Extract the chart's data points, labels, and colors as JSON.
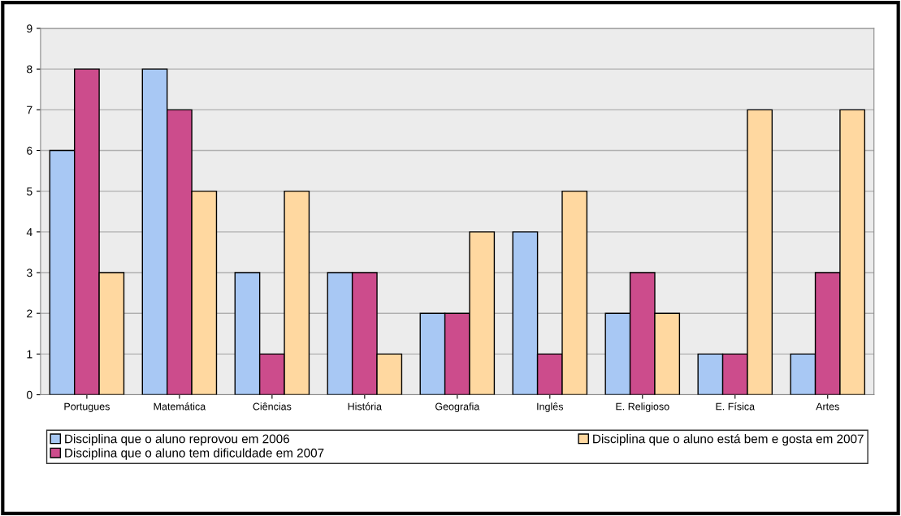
{
  "chart_data": {
    "type": "bar",
    "categories": [
      "Portugues",
      "Matemática",
      "Ciências",
      "História",
      "Geografia",
      "Inglês",
      "E. Religioso",
      "E. Física",
      "Artes"
    ],
    "series": [
      {
        "name": "Disciplina que o aluno reprovou em 2006",
        "color": "#a8c8f4",
        "values": [
          6,
          8,
          3,
          3,
          2,
          4,
          2,
          1,
          1
        ]
      },
      {
        "name": "Disciplina que o aluno tem dificuldade em 2007",
        "color": "#cc4c8c",
        "values": [
          8,
          7,
          1,
          3,
          2,
          1,
          3,
          1,
          3
        ]
      },
      {
        "name": "Disciplina que o aluno está bem e gosta em 2007",
        "color": "#ffd8a0",
        "values": [
          3,
          5,
          5,
          1,
          4,
          5,
          2,
          7,
          7
        ]
      }
    ],
    "ylim": [
      0,
      9
    ],
    "yticks": [
      0,
      1,
      2,
      3,
      4,
      5,
      6,
      7,
      8,
      9
    ],
    "grid": "y",
    "legend": "bottom"
  }
}
